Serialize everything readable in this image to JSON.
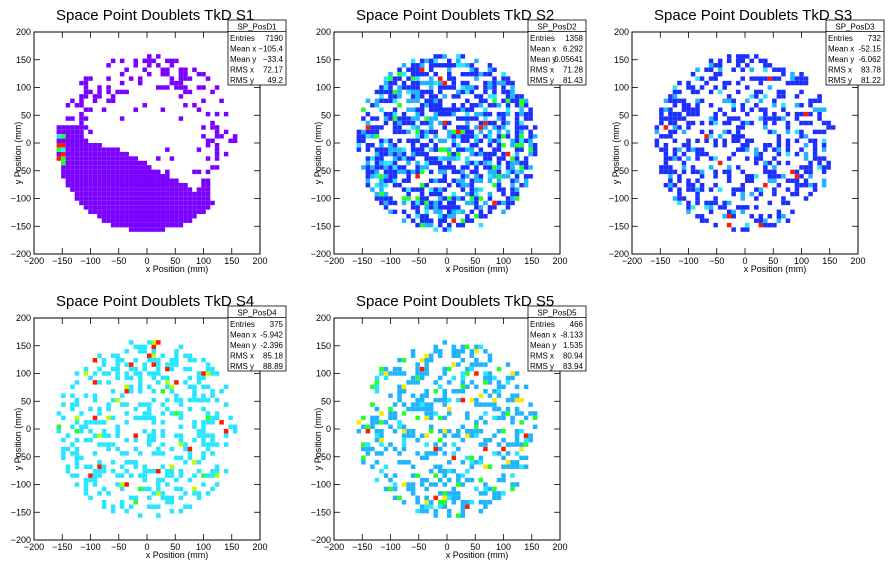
{
  "chart_data": [
    {
      "type": "heatmap",
      "title": "Space Point Doublets TkD S1",
      "xlabel": "x Position (mm)",
      "ylabel": "y Position (mm)",
      "xlim": [
        -200,
        200
      ],
      "ylim": [
        -200,
        200
      ],
      "xticks": [
        -200,
        -150,
        -100,
        -50,
        0,
        50,
        100,
        150,
        200
      ],
      "yticks": [
        -200,
        -150,
        -100,
        -50,
        0,
        50,
        100,
        150,
        200
      ],
      "stats": {
        "name": "SP_PosD1",
        "rows": [
          {
            "label": "Entries",
            "value": "7190"
          },
          {
            "label": "Mean x",
            "value": "−105.4"
          },
          {
            "label": "Mean y",
            "value": "−33.4"
          },
          {
            "label": "RMS x",
            "value": "72.17"
          },
          {
            "label": "RMS y",
            "value": "49.2"
          }
        ]
      }
    },
    {
      "type": "heatmap",
      "title": "Space Point Doublets TkD S2",
      "xlabel": "x Position (mm)",
      "ylabel": "y Position (mm)",
      "xlim": [
        -200,
        200
      ],
      "ylim": [
        -200,
        200
      ],
      "xticks": [
        -200,
        -150,
        -100,
        -50,
        0,
        50,
        100,
        150,
        200
      ],
      "yticks": [
        -200,
        -150,
        -100,
        -50,
        0,
        50,
        100,
        150,
        200
      ],
      "stats": {
        "name": "SP_PosD2",
        "rows": [
          {
            "label": "Entries",
            "value": "1358"
          },
          {
            "label": "Mean x",
            "value": "6.292"
          },
          {
            "label": "Mean y",
            "value": "0.05641"
          },
          {
            "label": "RMS x",
            "value": "71.28"
          },
          {
            "label": "RMS y",
            "value": "81.43"
          }
        ]
      }
    },
    {
      "type": "heatmap",
      "title": "Space Point Doublets TkD S3",
      "xlabel": "x Position (mm)",
      "ylabel": "y Position (mm)",
      "xlim": [
        -200,
        200
      ],
      "ylim": [
        -200,
        200
      ],
      "xticks": [
        -200,
        -150,
        -100,
        -50,
        0,
        50,
        100,
        150,
        200
      ],
      "yticks": [
        -200,
        -150,
        -100,
        -50,
        0,
        50,
        100,
        150,
        200
      ],
      "stats": {
        "name": "SP_PosD3",
        "rows": [
          {
            "label": "Entries",
            "value": "732"
          },
          {
            "label": "Mean x",
            "value": "-52.15"
          },
          {
            "label": "Mean y",
            "value": "-6.062"
          },
          {
            "label": "RMS x",
            "value": "83.78"
          },
          {
            "label": "RMS y",
            "value": "81.22"
          }
        ]
      }
    },
    {
      "type": "heatmap",
      "title": "Space Point Doublets TkD S4",
      "xlabel": "x Position (mm)",
      "ylabel": "y Position (mm)",
      "xlim": [
        -200,
        200
      ],
      "ylim": [
        -200,
        200
      ],
      "xticks": [
        -200,
        -150,
        -100,
        -50,
        0,
        50,
        100,
        150,
        200
      ],
      "yticks": [
        -200,
        -150,
        -100,
        -50,
        0,
        50,
        100,
        150,
        200
      ],
      "stats": {
        "name": "SP_PosD4",
        "rows": [
          {
            "label": "Entries",
            "value": "375"
          },
          {
            "label": "Mean x",
            "value": "-5.942"
          },
          {
            "label": "Mean y",
            "value": "-2.396"
          },
          {
            "label": "RMS x",
            "value": "85.18"
          },
          {
            "label": "RMS y",
            "value": "88.89"
          }
        ]
      }
    },
    {
      "type": "heatmap",
      "title": "Space Point Doublets TkD S5",
      "xlabel": "x Position (mm)",
      "ylabel": "y Position (mm)",
      "xlim": [
        -200,
        200
      ],
      "ylim": [
        -200,
        200
      ],
      "xticks": [
        -200,
        -150,
        -100,
        -50,
        0,
        50,
        100,
        150,
        200
      ],
      "yticks": [
        -200,
        -150,
        -100,
        -50,
        0,
        50,
        100,
        150,
        200
      ],
      "stats": {
        "name": "SP_PosD5",
        "rows": [
          {
            "label": "Entries",
            "value": "466"
          },
          {
            "label": "Mean x",
            "value": "-8.133"
          },
          {
            "label": "Mean y",
            "value": "1.535"
          },
          {
            "label": "RMS x",
            "value": "80.94"
          },
          {
            "label": "RMS y",
            "value": "83.94"
          }
        ]
      }
    }
  ]
}
